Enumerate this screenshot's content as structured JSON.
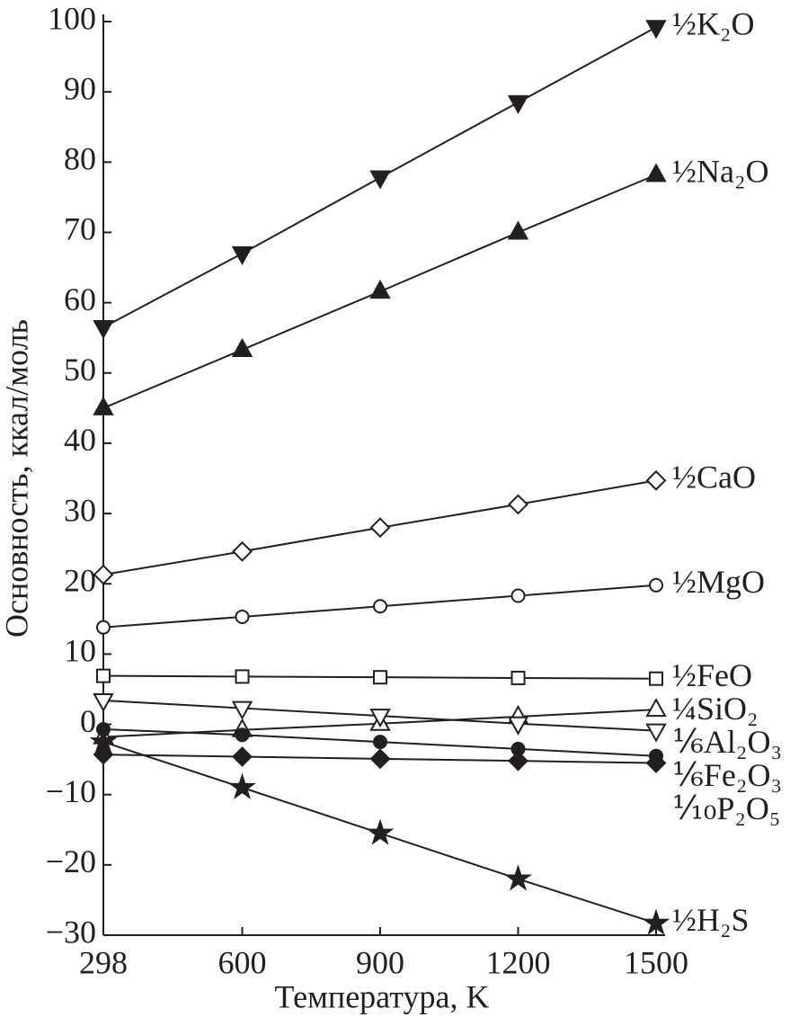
{
  "chart_data": {
    "type": "line",
    "xlabel": "Температура, K",
    "ylabel": "Основность, ккал/моль",
    "x": [
      298,
      600,
      900,
      1200,
      1500
    ],
    "xlim": [
      298,
      1500
    ],
    "xticks": [
      298,
      600,
      900,
      1200,
      1500
    ],
    "ylim": [
      -30,
      100
    ],
    "yticks": [
      {
        "value": -30,
        "label": "−30"
      },
      {
        "value": -20,
        "label": "−20"
      },
      {
        "value": -10,
        "label": "−10"
      },
      0,
      10,
      20,
      30,
      40,
      50,
      60,
      70,
      80,
      90,
      100
    ],
    "series": [
      {
        "name": "½K₂O",
        "color": "#231f20",
        "marker": "triangle-down-filled",
        "values": [
          56.5,
          67,
          77.8,
          88.5,
          99.2
        ]
      },
      {
        "name": "½Na₂O",
        "color": "#231f20",
        "marker": "triangle-up-filled",
        "values": [
          45,
          53.3,
          61.6,
          70,
          78.2
        ]
      },
      {
        "name": "½CaO",
        "color": "#231f20",
        "marker": "diamond-open",
        "values": [
          21.3,
          24.6,
          28,
          31.3,
          34.7
        ]
      },
      {
        "name": "½MgO",
        "color": "#231f20",
        "marker": "circle-open",
        "values": [
          13.8,
          15.3,
          16.8,
          18.3,
          19.8
        ]
      },
      {
        "name": "½FeO",
        "color": "#231f20",
        "marker": "square-open",
        "values": [
          6.9,
          6.8,
          6.7,
          6.6,
          6.5
        ]
      },
      {
        "name": "¼SiO₂",
        "color": "#231f20",
        "marker": "triangle-up-open",
        "values": [
          -1.8,
          -0.8,
          0.1,
          1.1,
          2.1
        ]
      },
      {
        "name": "⅙Al₂O₃",
        "color": "#231f20",
        "marker": "triangle-down-open",
        "values": [
          3.4,
          2.3,
          1.2,
          0.1,
          -0.9
        ]
      },
      {
        "name": "⅙Fe₂O₃",
        "color": "#231f20",
        "marker": "circle-filled",
        "values": [
          -0.7,
          -1.5,
          -2.5,
          -3.5,
          -4.5
        ]
      },
      {
        "name": "⅒P₂O₅",
        "color": "#231f20",
        "marker": "diamond-filled",
        "values": [
          -4.3,
          -4.6,
          -4.9,
          -5.2,
          -5.5
        ]
      },
      {
        "name": "½H₂S",
        "color": "#231f20",
        "marker": "star-filled",
        "values": [
          -2.5,
          -9,
          -15.5,
          -22,
          -28.3
        ]
      }
    ]
  }
}
